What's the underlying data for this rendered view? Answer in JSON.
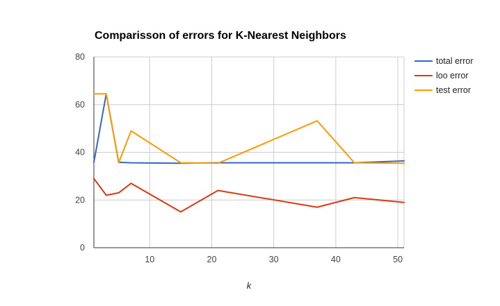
{
  "chart_data": {
    "type": "line",
    "title": "Comparisson of errors for K-Nearest Neighbors",
    "xlabel": "k",
    "ylabel": "",
    "xlim": [
      1,
      51
    ],
    "ylim": [
      0,
      80
    ],
    "x_ticks": [
      10,
      20,
      30,
      40,
      50
    ],
    "y_ticks": [
      0,
      20,
      40,
      60,
      80
    ],
    "grid": true,
    "legend_position": "right",
    "series": [
      {
        "name": "total error",
        "color": "#3366cc",
        "points": [
          [
            1,
            35.8
          ],
          [
            3,
            64.5
          ],
          [
            5,
            35.8
          ],
          [
            7,
            35.6
          ],
          [
            15,
            35.4
          ],
          [
            21,
            35.6
          ],
          [
            37,
            35.6
          ],
          [
            43,
            35.6
          ],
          [
            51,
            36.4
          ]
        ]
      },
      {
        "name": "loo error",
        "color": "#dc3912",
        "points": [
          [
            1,
            29
          ],
          [
            3,
            22
          ],
          [
            5,
            23
          ],
          [
            7,
            27
          ],
          [
            15,
            15
          ],
          [
            21,
            24
          ],
          [
            37,
            17
          ],
          [
            43,
            21
          ],
          [
            51,
            19
          ]
        ]
      },
      {
        "name": "test error",
        "color": "#ff9900",
        "points": [
          [
            1,
            64.5
          ],
          [
            3,
            64.5
          ],
          [
            5,
            35.6
          ],
          [
            7,
            49
          ],
          [
            15,
            35.6
          ],
          [
            21,
            35.4
          ],
          [
            37,
            53.2
          ],
          [
            43,
            35.6
          ],
          [
            51,
            35.4
          ]
        ]
      }
    ]
  }
}
